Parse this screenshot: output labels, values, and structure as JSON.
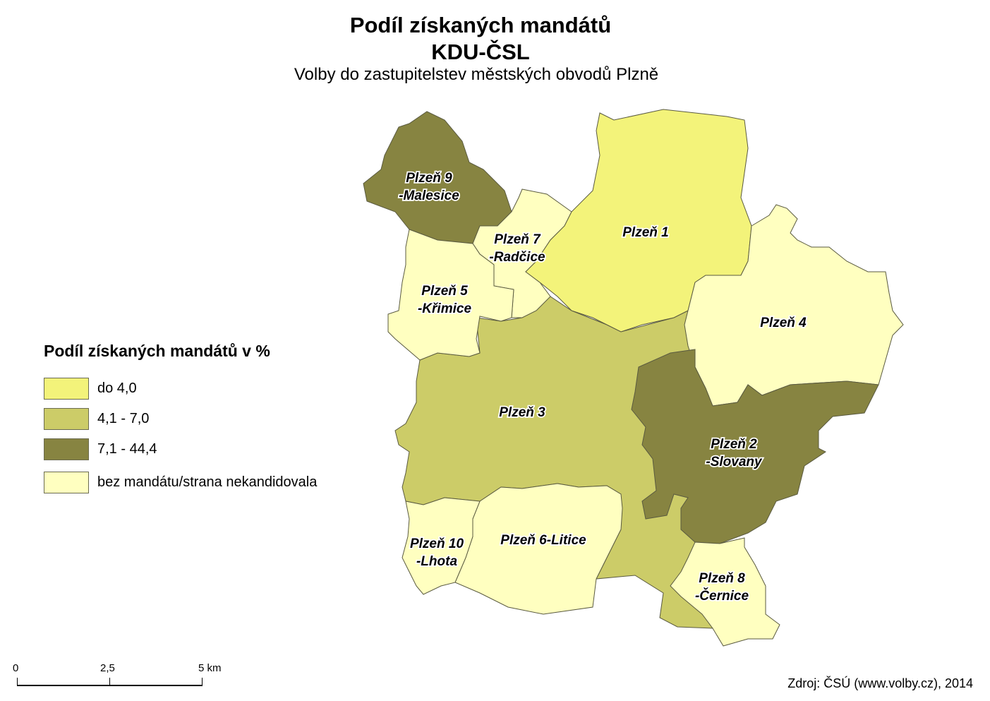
{
  "title": "Podíl získaných mandátů",
  "party": "KDU-ČSL",
  "subtitle": "Volby do zastupitelstev městských obvodů Plzně",
  "legend": {
    "title": "Podíl získaných mandátů v %",
    "classes": [
      {
        "id": "low",
        "label": "do 4,0",
        "color": "#f3f37a"
      },
      {
        "id": "mid",
        "label": "4,1 - 7,0",
        "color": "#cccc68"
      },
      {
        "id": "high",
        "label": "7,1 - 44,4",
        "color": "#878441"
      },
      {
        "id": "none",
        "label": "bez mandátu/strana nekandidovala",
        "color": "#ffffc0"
      }
    ]
  },
  "districts": [
    {
      "id": "p3",
      "label": [
        "Plzeň 3"
      ],
      "class": "mid"
    },
    {
      "id": "p9",
      "label": [
        "Plzeň 9",
        "-Malesice"
      ],
      "class": "high"
    },
    {
      "id": "p7",
      "label": [
        "Plzeň 7",
        "-Radčice"
      ],
      "class": "none"
    },
    {
      "id": "p5",
      "label": [
        "Plzeň 5",
        "-Křimice"
      ],
      "class": "none"
    },
    {
      "id": "p1",
      "label": [
        "Plzeň 1"
      ],
      "class": "low"
    },
    {
      "id": "p4",
      "label": [
        "Plzeň 4"
      ],
      "class": "none"
    },
    {
      "id": "p2",
      "label": [
        "Plzeň 2",
        "-Slovany"
      ],
      "class": "high"
    },
    {
      "id": "p6",
      "label": [
        "Plzeň 6-Litice"
      ],
      "class": "none"
    },
    {
      "id": "p10",
      "label": [
        "Plzeň 10",
        "-Lhota"
      ],
      "class": "none"
    },
    {
      "id": "p8",
      "label": [
        "Plzeň 8",
        "-Černice"
      ],
      "class": "none"
    }
  ],
  "scale": {
    "ticks": [
      "0",
      "2,5",
      "5 km"
    ]
  },
  "source": "Zdroj: ČSÚ (www.volby.cz), 2014"
}
